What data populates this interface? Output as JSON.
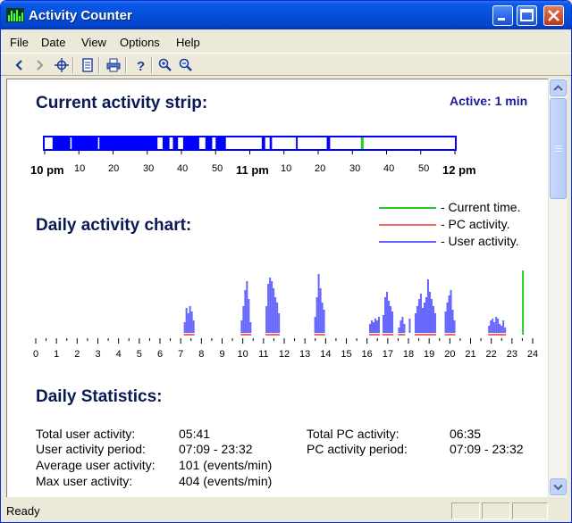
{
  "window": {
    "title": "Activity Counter"
  },
  "menu": [
    "File",
    "Date",
    "View",
    "Options",
    "Help"
  ],
  "strip": {
    "title": "Current activity strip:",
    "active_label": "Active: 1 min",
    "tick_labels": [
      "10 pm",
      "10",
      "20",
      "30",
      "40",
      "50",
      "11 pm",
      "10",
      "20",
      "30",
      "40",
      "50",
      "12 pm"
    ],
    "colors": {
      "user": "#0000ff",
      "current": "#22cc22",
      "border": "#0000ff"
    }
  },
  "daily_chart": {
    "title": "Daily activity chart:",
    "legend": [
      "- Current time.",
      "- PC activity.",
      "- User activity."
    ],
    "hours": [
      "0",
      "1",
      "2",
      "3",
      "4",
      "5",
      "6",
      "7",
      "8",
      "9",
      "10",
      "11",
      "12",
      "13",
      "14",
      "15",
      "16",
      "17",
      "18",
      "19",
      "20",
      "21",
      "22",
      "23",
      "24"
    ],
    "colors": {
      "user": "#6666ff",
      "pc": "#ee6666",
      "current": "#22cc22"
    }
  },
  "stats": {
    "title": "Daily Statistics:",
    "left": [
      {
        "label": "Total user activity:",
        "value": "05:41"
      },
      {
        "label": "User activity period:",
        "value": "07:09 - 23:32"
      },
      {
        "label": "Average user activity:",
        "value": "101 (events/min)"
      },
      {
        "label": "Max user activity:",
        "value": "404 (events/min)"
      }
    ],
    "right": [
      {
        "label": "Total PC activity:",
        "value": "06:35"
      },
      {
        "label": "PC activity period:",
        "value": "07:09 - 23:32"
      }
    ]
  },
  "status": {
    "text": "Ready"
  }
}
